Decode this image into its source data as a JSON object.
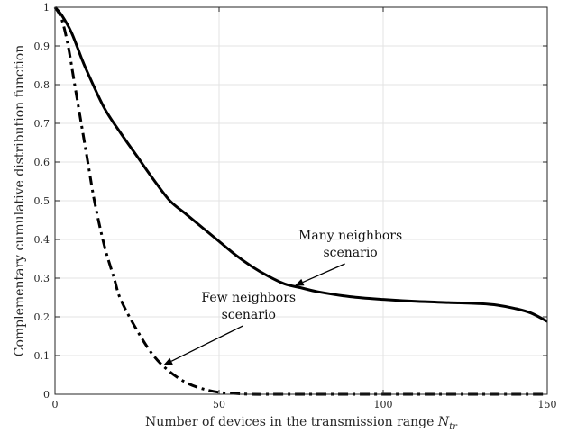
{
  "chart_data": {
    "type": "line",
    "title": "",
    "xlabel": "Number of devices in the transmission range",
    "xlabel_symbol": "N",
    "xlabel_subscript": "tr",
    "ylabel": "Complementary cumulative distribution function",
    "xlim": [
      0,
      150
    ],
    "ylim": [
      0,
      1
    ],
    "x_ticks": [
      "0",
      "50",
      "100",
      "150"
    ],
    "y_ticks": [
      "0",
      "0.1",
      "0.2",
      "0.3",
      "0.4",
      "0.5",
      "0.6",
      "0.7",
      "0.8",
      "0.9",
      "1"
    ],
    "grid": true,
    "legend": "none",
    "series": [
      {
        "name": "Many neighbors scenario",
        "style": "solid",
        "color": "#000000",
        "x": [
          0,
          2,
          5,
          8,
          10,
          15,
          20,
          25,
          30,
          35,
          40,
          45,
          50,
          55,
          60,
          65,
          70,
          75,
          80,
          90,
          100,
          110,
          120,
          130,
          135,
          140,
          145,
          150
        ],
        "y": [
          1.0,
          0.98,
          0.935,
          0.87,
          0.83,
          0.74,
          0.675,
          0.615,
          0.555,
          0.5,
          0.465,
          0.43,
          0.395,
          0.36,
          0.33,
          0.305,
          0.285,
          0.275,
          0.265,
          0.252,
          0.245,
          0.24,
          0.237,
          0.234,
          0.23,
          0.222,
          0.21,
          0.188
        ]
      },
      {
        "name": "Few neighbors scenario",
        "style": "dashdot",
        "color": "#000000",
        "x": [
          0,
          2,
          4,
          6,
          8,
          10,
          12,
          15,
          18,
          20,
          25,
          30,
          35,
          40,
          45,
          50,
          55,
          60,
          70,
          80,
          100,
          120,
          150
        ],
        "y": [
          1.0,
          0.97,
          0.9,
          0.8,
          0.7,
          0.6,
          0.5,
          0.385,
          0.3,
          0.245,
          0.165,
          0.1,
          0.058,
          0.03,
          0.014,
          0.005,
          0.002,
          0.0,
          0.0,
          0.0,
          0.0,
          0.0,
          0.0
        ]
      }
    ],
    "annotations": [
      {
        "id": "many",
        "lines": [
          "Many neighbors",
          "scenario"
        ],
        "text_x": 90,
        "text_y": 0.4,
        "arrow_to": [
          73,
          0.28
        ]
      },
      {
        "id": "few",
        "lines": [
          "Few neighbors",
          "scenario"
        ],
        "text_x": 59,
        "text_y": 0.24,
        "arrow_to": [
          33,
          0.075
        ]
      }
    ]
  }
}
